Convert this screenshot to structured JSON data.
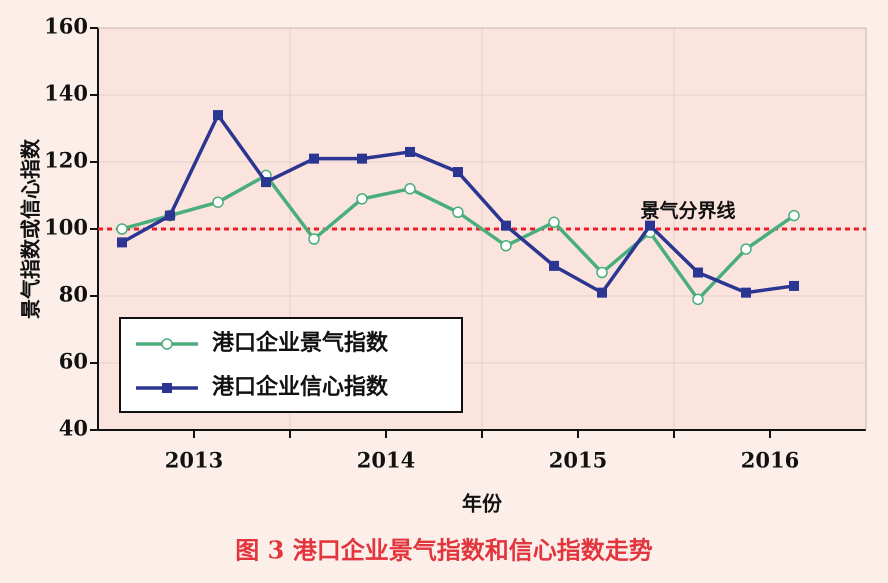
{
  "chart_data": {
    "type": "line",
    "ylabel": "景气指数或信心指数",
    "xlabel": "年份",
    "caption": "图 3   港口企业景气指数和信心指数走势",
    "x": [
      2012.625,
      2012.875,
      2013.125,
      2013.375,
      2013.625,
      2013.875,
      2014.125,
      2014.375,
      2014.625,
      2014.875,
      2015.125,
      2015.375,
      2015.625,
      2015.875,
      2016.125
    ],
    "xlim": [
      2012.5,
      2016.5
    ],
    "xticks": [
      {
        "value": 2013,
        "label": "2013"
      },
      {
        "value": 2014,
        "label": "2014"
      },
      {
        "value": 2015,
        "label": "2015"
      },
      {
        "value": 2016,
        "label": "2016"
      }
    ],
    "xgrid": [
      2013.5,
      2014.5,
      2015.5
    ],
    "ylim": [
      40,
      160
    ],
    "yticks": [
      40,
      60,
      80,
      100,
      120,
      140,
      160
    ],
    "grid": true,
    "legend": "lower left",
    "reference_line": {
      "value": 100,
      "label": "景气分界线",
      "color": "#e8202a"
    },
    "series": [
      {
        "name": "港口企业景气指数",
        "color": "#4aae7c",
        "marker": "circle",
        "values": [
          100,
          104,
          108,
          116,
          97,
          109,
          112,
          105,
          95,
          102,
          87,
          99,
          79,
          94,
          104
        ]
      },
      {
        "name": "港口企业信心指数",
        "color": "#2b3592",
        "marker": "square",
        "values": [
          96,
          104,
          134,
          114,
          121,
          121,
          123,
          117,
          101,
          89,
          81,
          101,
          87,
          81,
          83
        ]
      }
    ]
  }
}
